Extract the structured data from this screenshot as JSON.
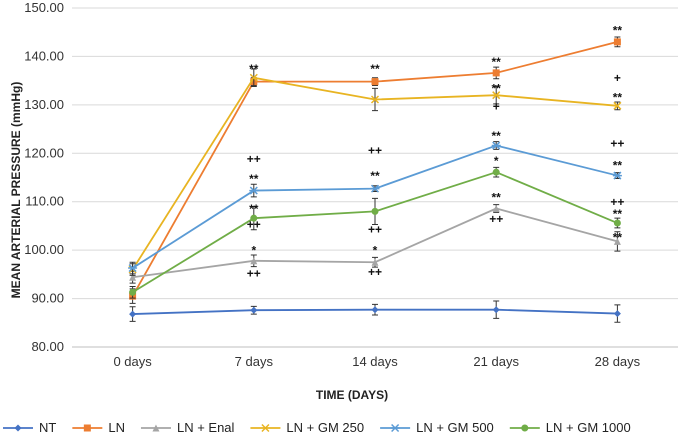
{
  "chart_data": {
    "type": "line",
    "title": "",
    "xlabel": "TIME (DAYS)",
    "ylabel": "MEAN ARTERIAL PRESSURE (mmHg)",
    "ylim": [
      80,
      150
    ],
    "yticks": [
      "80.00",
      "90.00",
      "100.00",
      "110.00",
      "120.00",
      "130.00",
      "140.00",
      "150.00"
    ],
    "categories": [
      "0 days",
      "7 days",
      "14 days",
      "21 days",
      "28 days"
    ],
    "grid": true,
    "legend_position": "bottom",
    "series": [
      {
        "name": "NT",
        "color": "#4472C4",
        "marker": "diamond",
        "values": [
          86.8,
          87.6,
          87.7,
          87.7,
          86.9
        ],
        "errors": [
          1.5,
          0.8,
          1.1,
          1.8,
          1.8
        ]
      },
      {
        "name": "LN",
        "color": "#ED7D31",
        "marker": "square",
        "values": [
          90.5,
          134.8,
          134.8,
          136.6,
          143.0
        ],
        "errors": [
          1.5,
          0.8,
          0.8,
          1.2,
          1.0
        ]
      },
      {
        "name": "LN + Enal",
        "color": "#A5A5A5",
        "marker": "triangle",
        "values": [
          94.4,
          97.8,
          97.5,
          108.6,
          101.8
        ],
        "errors": [
          1.2,
          1.2,
          1.0,
          0.8,
          2.0
        ]
      },
      {
        "name": "LN + GM 250",
        "color": "#E8B422",
        "marker": "x",
        "values": [
          96.0,
          135.6,
          131.1,
          132.0,
          129.8
        ],
        "errors": [
          1.2,
          1.8,
          2.3,
          1.8,
          0.8
        ]
      },
      {
        "name": "LN + GM 500",
        "color": "#5B9BD5",
        "marker": "star",
        "values": [
          96.3,
          112.3,
          112.7,
          121.6,
          115.4
        ],
        "errors": [
          1.2,
          1.3,
          0.6,
          0.8,
          0.6
        ]
      },
      {
        "name": "LN + GM 1000",
        "color": "#70AD47",
        "marker": "circle",
        "values": [
          91.3,
          106.6,
          108.0,
          116.1,
          105.6
        ],
        "errors": [
          1.2,
          2.4,
          2.7,
          1.0,
          1.0
        ]
      }
    ],
    "annotations": [
      {
        "text": "**",
        "x": "7 days",
        "y": 137.4
      },
      {
        "text": "++",
        "x": "7 days",
        "y": 118.8
      },
      {
        "text": "**",
        "x": "7 days",
        "y": 114.7
      },
      {
        "text": "**",
        "x": "7 days",
        "y": 108.5
      },
      {
        "text": "++",
        "x": "7 days",
        "y": 105.3
      },
      {
        "text": "*",
        "x": "7 days",
        "y": 99.9
      },
      {
        "text": "++",
        "x": "7 days",
        "y": 95.2
      },
      {
        "text": "**",
        "x": "14 days",
        "y": 137.4
      },
      {
        "text": "++",
        "x": "14 days",
        "y": 120.6
      },
      {
        "text": "**",
        "x": "14 days",
        "y": 115.3
      },
      {
        "text": "++",
        "x": "14 days",
        "y": 104.3
      },
      {
        "text": "*",
        "x": "14 days",
        "y": 99.9
      },
      {
        "text": "++",
        "x": "14 days",
        "y": 95.5
      },
      {
        "text": "**",
        "x": "21 days",
        "y": 138.8
      },
      {
        "text": "**",
        "x": "21 days",
        "y": 133.4
      },
      {
        "text": "+",
        "x": "21 days",
        "y": 129.7
      },
      {
        "text": "**",
        "x": "21 days",
        "y": 123.6
      },
      {
        "text": "*",
        "x": "21 days",
        "y": 118.4
      },
      {
        "text": "**",
        "x": "21 days",
        "y": 110.9
      },
      {
        "text": "++",
        "x": "21 days",
        "y": 106.4
      },
      {
        "text": "**",
        "x": "28 days",
        "y": 145.4
      },
      {
        "text": "+",
        "x": "28 days",
        "y": 135.5
      },
      {
        "text": "**",
        "x": "28 days",
        "y": 131.5
      },
      {
        "text": "++",
        "x": "28 days",
        "y": 122.0
      },
      {
        "text": "**",
        "x": "28 days",
        "y": 117.5
      },
      {
        "text": "++",
        "x": "28 days",
        "y": 109.9
      },
      {
        "text": "**",
        "x": "28 days",
        "y": 107.5
      },
      {
        "text": "**",
        "x": "28 days",
        "y": 102.6
      }
    ]
  }
}
